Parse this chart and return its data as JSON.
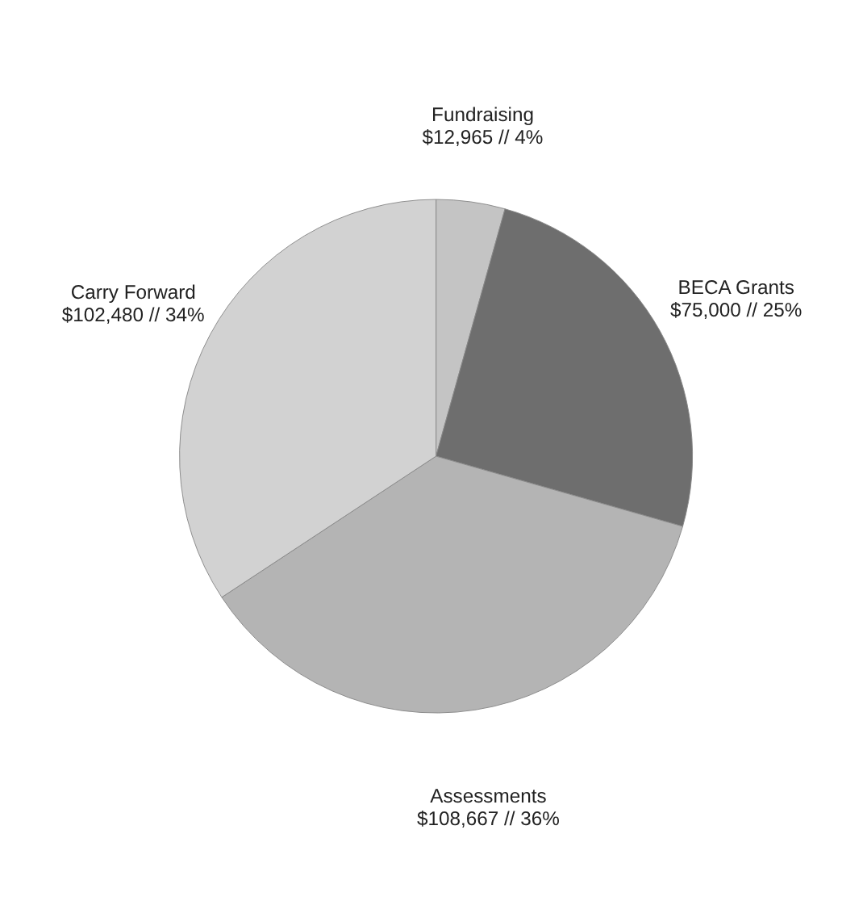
{
  "chart_data": {
    "type": "pie",
    "categories": [
      "Fundraising",
      "BECA Grants",
      "Assessments",
      "Carry Forward"
    ],
    "values": [
      12965,
      75000,
      108667,
      102480
    ],
    "value_labels": [
      "$12,965 // 4%",
      "$75,000 // 25%",
      "$108,667 // 36%",
      "$102,480 // 34%"
    ],
    "colors": [
      "#c4c4c4",
      "#6e6e6e",
      "#b4b4b4",
      "#d2d2d2"
    ],
    "legend": false
  }
}
